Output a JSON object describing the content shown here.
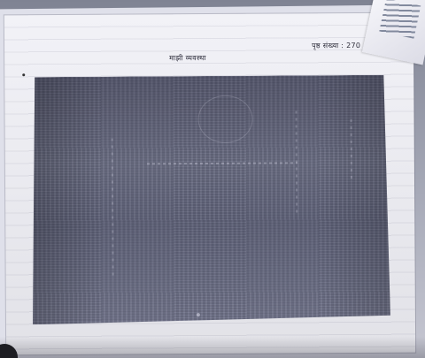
{
  "photo": {
    "subject": "photocopied page",
    "header_center": "माझी  व्यवस्था",
    "header_right": "पृष्ठ संख्या : 270"
  }
}
